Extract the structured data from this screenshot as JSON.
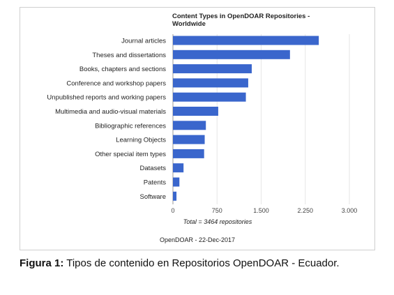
{
  "chart_data": {
    "type": "bar",
    "orientation": "horizontal",
    "title": "Content Types in OpenDOAR Repositories - Worldwide",
    "title_lines": [
      "Content Types in OpenDOAR Repositories -",
      "Worldwide"
    ],
    "categories": [
      "Journal articles",
      "Theses and dissertations",
      "Books, chapters and sections",
      "Conference and workshop papers",
      "Unpublished reports and working papers",
      "Multimedia and audio-visual materials",
      "Bibliographic references",
      "Learning Objects",
      "Other special item types",
      "Datasets",
      "Patents",
      "Software"
    ],
    "values": [
      2480,
      1990,
      1340,
      1280,
      1240,
      770,
      560,
      540,
      530,
      180,
      110,
      60
    ],
    "xlim": [
      0,
      3000
    ],
    "xticks": [
      0,
      750,
      1500,
      2250,
      3000
    ],
    "xtick_labels": [
      "0",
      "750",
      "1.500",
      "2.250",
      "3.000"
    ],
    "xlabel": "Total = 3464 repositories",
    "source": "OpenDOAR - 22-Dec-2017",
    "grid": true,
    "legend": "none",
    "bar_color": "#3a66cc"
  },
  "caption": {
    "label": "Figura 1:",
    "text": " Tipos de contenido en Repositorios OpenDOAR - Ecuador."
  }
}
